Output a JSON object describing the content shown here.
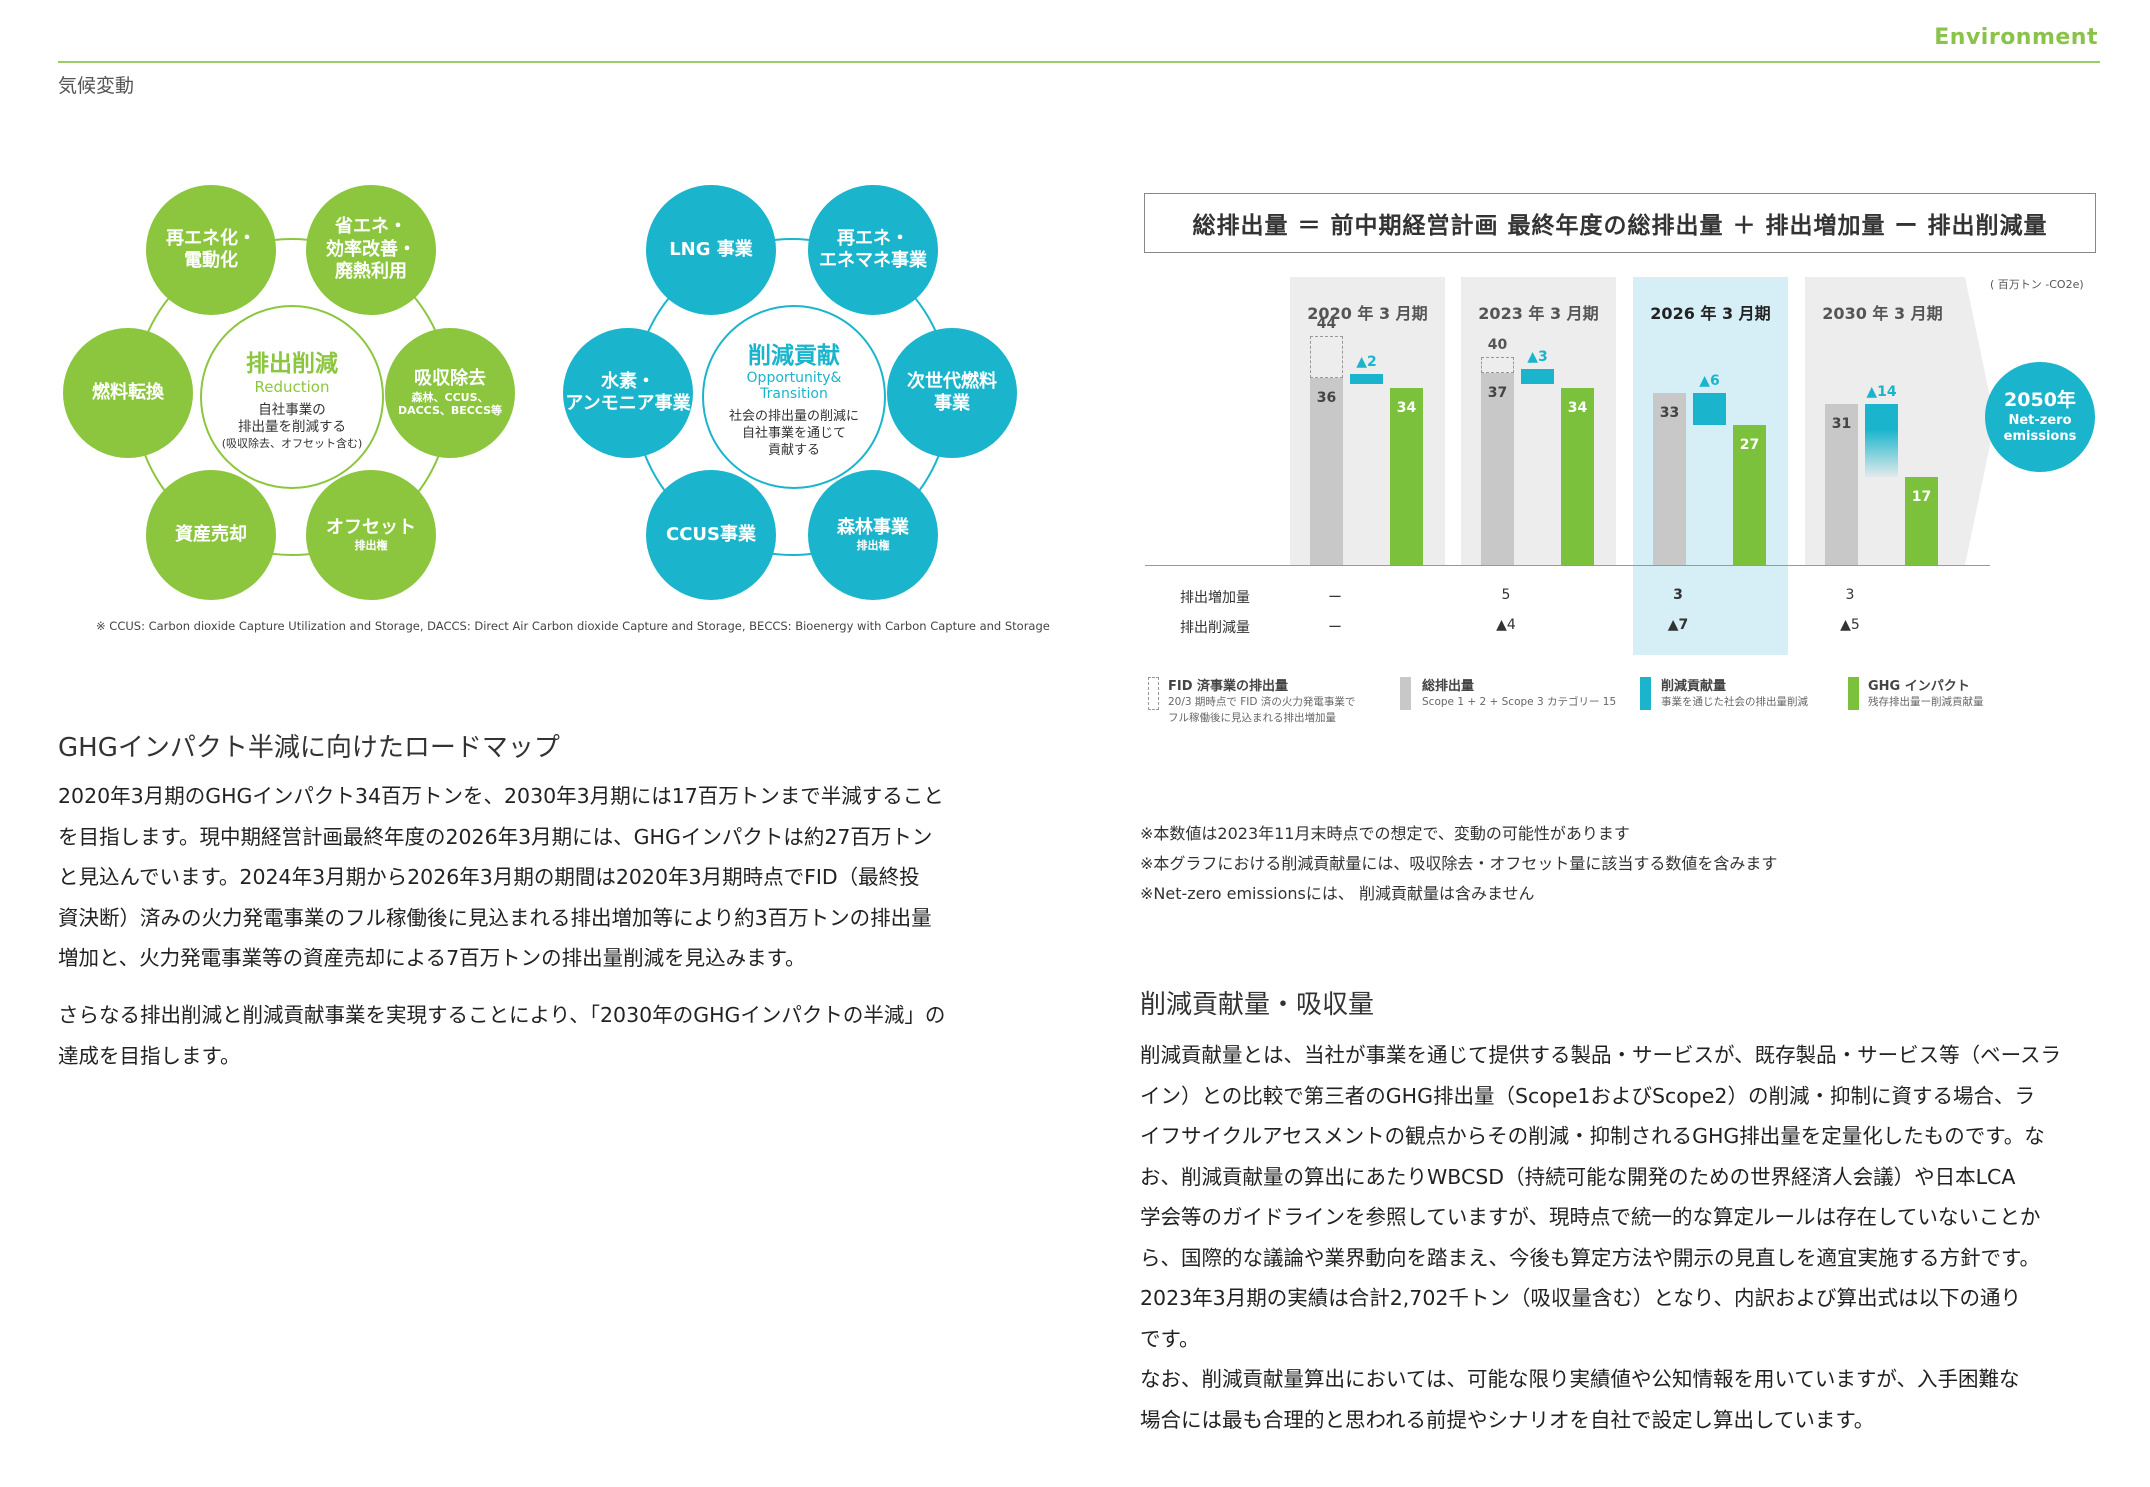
{
  "header": {
    "section": "気候変動",
    "category": "Environment"
  },
  "reduction_diagram": {
    "center_title": "排出削減",
    "center_subtitle": "Reduction",
    "center_desc1": "自社事業の",
    "center_desc2": "排出量を削減する",
    "center_desc3": "(吸収除去、オフセット含む)",
    "items": [
      {
        "l1": "再エネ化・",
        "l2": "電動化"
      },
      {
        "l1": "省エネ・",
        "l2": "効率改善・",
        "l3": "廃熱利用"
      },
      {
        "l1": "吸収除去",
        "sub1": "森林、CCUS、",
        "sub2": "DACCS、BECCS等"
      },
      {
        "l1": "オフセット",
        "sub1": "排出権"
      },
      {
        "l1": "資産売却"
      },
      {
        "l1": "燃料転換"
      }
    ]
  },
  "contribution_diagram": {
    "center_title": "削減貢献",
    "center_subtitle1": "Opportunity&",
    "center_subtitle2": "Transition",
    "center_desc1": "社会の排出量の削減に",
    "center_desc2": "自社事業を通じて",
    "center_desc3": "貢献する",
    "items": [
      {
        "l1": "LNG 事業"
      },
      {
        "l1": "再エネ・",
        "l2": "エネマネ事業"
      },
      {
        "l1": "次世代燃料",
        "l2": "事業"
      },
      {
        "l1": "森林事業",
        "sub1": "排出権"
      },
      {
        "l1": "CCUS事業"
      },
      {
        "l1": "水素・",
        "l2": "アンモニア事業"
      }
    ]
  },
  "diagram_footnote": "※ CCUS: Carbon dioxide Capture Utilization and Storage, DACCS: Direct Air Carbon dioxide Capture and Storage, BECCS: Bioenergy with Carbon Capture and Storage",
  "roadmap": {
    "heading": "GHGインパクト半減に向けたロードマップ",
    "p1": [
      "2020年3月期のGHGインパクト34百万トンを、2030年3月期には17百万トンまで半減すること",
      "を目指します。現中期経営計画最終年度の2026年3月期には、GHGインパクトは約27百万トン",
      "と見込んでいます。2024年3月期から2026年3月期の期間は2020年3月期時点でFID（最終投",
      "資決断）済みの火力発電事業のフル稼働後に見込まれる排出増加等により約3百万トンの排出量",
      "増加と、火力発電事業等の資産売却による7百万トンの排出量削減を見込みます。"
    ],
    "p2": [
      "さらなる排出削減と削減貢献事業を実現することにより、「2030年のGHGインパクトの半減」の",
      "達成を目指します。"
    ]
  },
  "chart_data": {
    "type": "bar",
    "title": "総排出量 ＝ 前中期経営計画 最終年度の総排出量 ＋ 排出増加量 ー 排出削減量",
    "unit": "( 百万トン -CO2e)",
    "categories": [
      "2020 年 3 月期",
      "2023 年 3 月期",
      "2026 年 3 月期",
      "2030 年 3 月期"
    ],
    "series": [
      {
        "name": "FID 済事業の排出量",
        "values": [
          44,
          40,
          null,
          null
        ]
      },
      {
        "name": "総排出量",
        "values": [
          36,
          37,
          33,
          31
        ]
      },
      {
        "name": "削減貢献量",
        "values": [
          2,
          3,
          6,
          14
        ],
        "labels": [
          "▲2",
          "▲3",
          "▲6",
          "▲14"
        ]
      },
      {
        "name": "GHG インパクト",
        "values": [
          34,
          34,
          27,
          17
        ]
      }
    ],
    "highlight_category": "2026 年 3 月期",
    "ylim": [
      0,
      50
    ],
    "rows": [
      {
        "label": "排出増加量",
        "values": [
          "ー",
          "5",
          "3",
          "3"
        ]
      },
      {
        "label": "排出削減量",
        "values": [
          "ー",
          "▲4",
          "▲7",
          "▲5"
        ]
      }
    ],
    "target": {
      "line1": "2050年",
      "line2": "Net-zero",
      "line3": "emissions"
    },
    "legend": [
      {
        "name": "FID 済事業の排出量",
        "desc1": "20/3 期時点で FID 済の火力発電事業で",
        "desc2": "フル稼働後に見込まれる排出増加量",
        "color": "#999999"
      },
      {
        "name": "総排出量",
        "desc1": "Scope 1 + 2 + Scope 3 カテゴリー 15",
        "color": "#c8c8c8"
      },
      {
        "name": "削減貢献量",
        "desc1": "事業を通じた社会の排出量削減",
        "color": "#1ab5cc"
      },
      {
        "name": "GHG インパクト",
        "desc1": "残存排出量ー削減貢献量",
        "color": "#7cc13b"
      }
    ]
  },
  "chart_notes": [
    "※本数値は2023年11月末時点での想定で、変動の可能性があります",
    "※本グラフにおける削減貢献量には、吸収除去・オフセット量に該当する数値を含みます",
    "※Net-zero emissionsには、 削減貢献量は含みません"
  ],
  "contribution_section": {
    "heading": "削減貢献量・吸収量",
    "lines": [
      "削減貢献量とは、当社が事業を通じて提供する製品・サービスが、既存製品・サービス等（ベースラ",
      "イン）との比較で第三者のGHG排出量（Scope1およびScope2）の削減・抑制に資する場合、ラ",
      "イフサイクルアセスメントの観点からその削減・抑制されるGHG排出量を定量化したものです。な",
      "お、削減貢献量の算出にあたりWBCSD（持続可能な開発のための世界経済人会議）や日本LCA",
      "学会等のガイドラインを参照していますが、現時点で統一的な算定ルールは存在していないことか",
      "ら、国際的な議論や業界動向を踏まえ、今後も算定方法や開示の見直しを適宜実施する方針です。",
      "2023年3月期の実績は合計2,702千トン（吸収量含む）となり、内訳および算出式は以下の通り",
      "です。",
      "なお、削減貢献量算出においては、可能な限り実績値や公知情報を用いていますが、入手困難な",
      "場合には最も合理的と思われる前提やシナリオを自社で設定し算出しています。"
    ]
  },
  "colors": {
    "green": "#8cc63f",
    "blue": "#1ab5cc",
    "accent_line": "#9ccc65"
  }
}
